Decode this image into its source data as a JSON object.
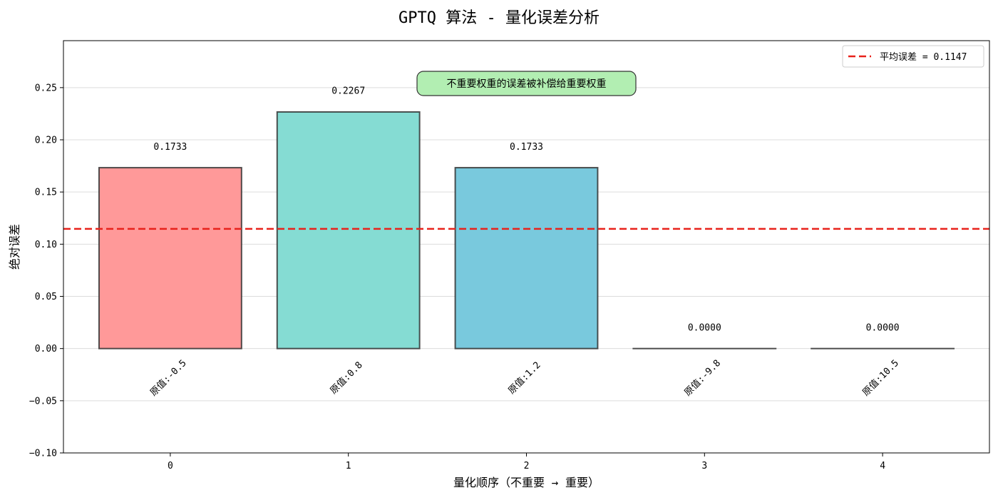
{
  "chart_data": {
    "type": "bar",
    "title": "GPTQ 算法 - 量化误差分析",
    "xlabel": "量化顺序（不重要 → 重要）",
    "ylabel": "绝对误差",
    "x": [
      0,
      1,
      2,
      3,
      4
    ],
    "xticks": [
      "0",
      "1",
      "2",
      "3",
      "4"
    ],
    "values": [
      0.1733,
      0.2267,
      0.1733,
      0.0,
      0.0
    ],
    "value_labels": [
      "0.1733",
      "0.2267",
      "0.1733",
      "0.0000",
      "0.0000"
    ],
    "category_labels": [
      "原值:-0.5",
      "原值:0.8",
      "原值:1.2",
      "原值:-9.8",
      "原值:10.5"
    ],
    "bar_colors": [
      "#ff9999",
      "#85dcd3",
      "#79c9dd",
      "#b0d4c0",
      "#f3d16a"
    ],
    "bar_edge_color": "#333333",
    "ylim": [
      -0.1,
      0.295
    ],
    "yticks": [
      -0.1,
      -0.05,
      0.0,
      0.05,
      0.1,
      0.15,
      0.2,
      0.25
    ],
    "ytick_labels": [
      "−0.10",
      "−0.05",
      "0.00",
      "0.05",
      "0.10",
      "0.15",
      "0.20",
      "0.25"
    ],
    "grid": "horizontal",
    "mean_line": {
      "value": 0.1147,
      "label": "平均误差 = 0.1147",
      "color": "#e8221b",
      "style": "dashed"
    },
    "legend": {
      "placement": "top-right",
      "entries": [
        "平均误差 = 0.1147"
      ]
    },
    "annotation": {
      "text": "不重要权重的误差被补偿给重要权重",
      "box_color": "#b2eeb2",
      "placement": "top-center"
    }
  }
}
